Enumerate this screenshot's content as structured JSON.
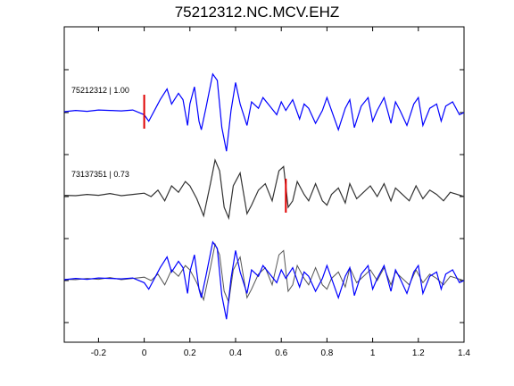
{
  "chart_data": {
    "type": "line",
    "title": "75212312.NC.MCV.EHZ",
    "xlabel": "",
    "ylabel": "",
    "xlim": [
      -0.35,
      1.4
    ],
    "x_ticks": [
      "-0.2",
      "0",
      "0.2",
      "0.4",
      "0.6",
      "0.8",
      "1",
      "1.2",
      "1.4"
    ],
    "x_tick_values": [
      -0.2,
      0,
      0.2,
      0.4,
      0.6,
      0.8,
      1.0,
      1.2,
      1.4
    ],
    "y_ticks_shown": false,
    "grid": false,
    "colors": {
      "trace_main": "#0000ff",
      "trace_other": "#333333",
      "pick": "#e00000",
      "axis": "#000000"
    },
    "series": [
      {
        "label": "75212312 | 1.00",
        "color": "#0000ff",
        "pick_time": 0.0,
        "x": [
          -0.35,
          -0.3,
          -0.25,
          -0.2,
          -0.15,
          -0.1,
          -0.05,
          0.0,
          0.02,
          0.05,
          0.07,
          0.1,
          0.12,
          0.15,
          0.17,
          0.19,
          0.2,
          0.22,
          0.24,
          0.25,
          0.27,
          0.3,
          0.32,
          0.34,
          0.36,
          0.38,
          0.4,
          0.42,
          0.45,
          0.47,
          0.5,
          0.52,
          0.55,
          0.58,
          0.6,
          0.62,
          0.65,
          0.68,
          0.7,
          0.72,
          0.75,
          0.78,
          0.8,
          0.82,
          0.85,
          0.88,
          0.9,
          0.92,
          0.95,
          0.98,
          1.0,
          1.02,
          1.05,
          1.08,
          1.1,
          1.12,
          1.15,
          1.18,
          1.2,
          1.22,
          1.25,
          1.28,
          1.3,
          1.32,
          1.35,
          1.38,
          1.4
        ],
        "y": [
          0.02,
          0.05,
          0.03,
          0.06,
          0.05,
          0.04,
          0.06,
          -0.05,
          -0.2,
          0.1,
          0.3,
          0.55,
          0.2,
          0.45,
          0.3,
          -0.3,
          0.2,
          0.6,
          -0.2,
          -0.4,
          0.1,
          0.9,
          0.75,
          -0.35,
          -0.9,
          0.05,
          0.7,
          0.2,
          -0.3,
          0.25,
          0.1,
          0.35,
          0.15,
          -0.05,
          0.25,
          0.05,
          0.3,
          -0.15,
          0.2,
          0.1,
          -0.25,
          0.05,
          0.35,
          0.05,
          -0.4,
          0.1,
          0.3,
          -0.35,
          0.15,
          0.35,
          -0.2,
          0.05,
          0.35,
          -0.25,
          0.25,
          0.05,
          -0.3,
          0.2,
          0.35,
          -0.3,
          0.1,
          0.2,
          -0.2,
          0.15,
          0.25,
          -0.05,
          0.0
        ]
      },
      {
        "label": "73137351 | 0.73",
        "color": "#333333",
        "pick_time": 0.62,
        "x": [
          -0.35,
          -0.3,
          -0.25,
          -0.2,
          -0.15,
          -0.1,
          -0.05,
          0.0,
          0.03,
          0.06,
          0.09,
          0.12,
          0.15,
          0.18,
          0.2,
          0.23,
          0.26,
          0.29,
          0.31,
          0.33,
          0.35,
          0.37,
          0.39,
          0.42,
          0.45,
          0.47,
          0.5,
          0.53,
          0.56,
          0.59,
          0.61,
          0.63,
          0.65,
          0.67,
          0.7,
          0.72,
          0.75,
          0.78,
          0.8,
          0.82,
          0.85,
          0.88,
          0.9,
          0.93,
          0.96,
          0.99,
          1.02,
          1.05,
          1.08,
          1.1,
          1.13,
          1.16,
          1.19,
          1.22,
          1.25,
          1.28,
          1.31,
          1.34,
          1.37,
          1.4
        ],
        "y": [
          0.03,
          0.02,
          0.05,
          0.03,
          0.07,
          0.02,
          0.05,
          0.08,
          0.0,
          0.15,
          -0.1,
          0.25,
          0.1,
          0.35,
          0.25,
          -0.05,
          -0.45,
          0.3,
          0.85,
          0.6,
          -0.25,
          -0.5,
          0.25,
          0.55,
          -0.4,
          -0.2,
          0.15,
          0.3,
          -0.1,
          0.6,
          0.7,
          -0.25,
          -0.1,
          0.35,
          0.05,
          -0.1,
          0.3,
          -0.1,
          -0.2,
          0.05,
          0.2,
          -0.15,
          0.3,
          -0.05,
          0.1,
          0.25,
          0.0,
          0.3,
          -0.1,
          0.2,
          0.05,
          -0.1,
          0.25,
          -0.05,
          0.15,
          0.05,
          -0.1,
          0.1,
          0.05,
          0.0
        ]
      }
    ],
    "overlay_note": ""
  }
}
